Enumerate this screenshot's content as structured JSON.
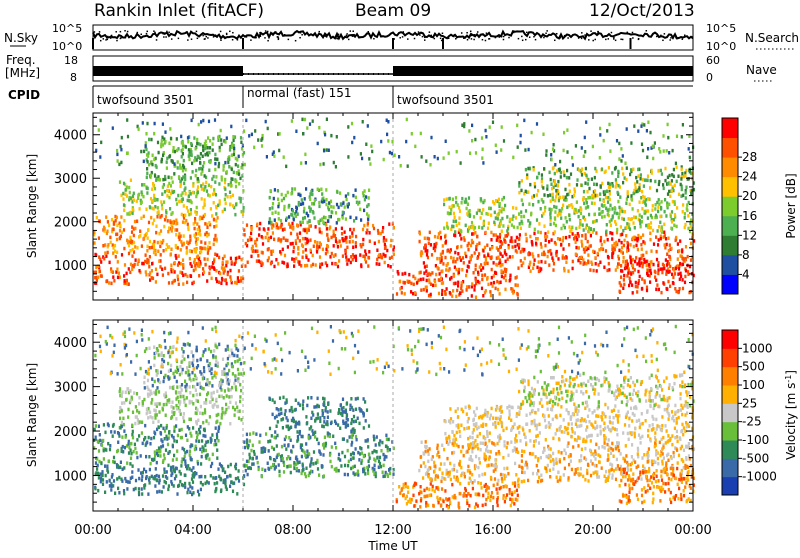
{
  "header": {
    "station": "Rankin Inlet (fitACF)",
    "beam": "Beam 09",
    "date": "12/Oct/2013"
  },
  "noise_panel": {
    "left_label": "N.Sky",
    "right_label": "N.Search",
    "left_ticks": [
      "10^5",
      "10^0"
    ],
    "right_ticks": [
      "10^5",
      "10^0"
    ]
  },
  "freq_panel": {
    "left_label_1": "Freq.",
    "left_label_2": "[MHz]",
    "right_label": "Nave",
    "left_ticks": [
      "18",
      "8"
    ],
    "right_ticks": [
      "60",
      "0"
    ]
  },
  "cpid": {
    "label": "CPID",
    "segments": [
      {
        "label": "twofsound 3501",
        "start_hour": 0,
        "end_hour": 6
      },
      {
        "label": "normal (fast) 151",
        "start_hour": 6,
        "end_hour": 12
      },
      {
        "label": "twofsound 3501",
        "start_hour": 12,
        "end_hour": 24
      }
    ]
  },
  "chart_data": [
    {
      "type": "heatmap",
      "quantity": "Power",
      "ylabel": "Slant Range [km]",
      "xlabel": "Time UT",
      "xlim": [
        0,
        24
      ],
      "ylim": [
        200,
        4500
      ],
      "yticks": [
        "1000",
        "2000",
        "3000",
        "4000"
      ],
      "colorbar": {
        "label": "Power [dB]",
        "ticks": [
          "4",
          "8",
          "12",
          "16",
          "20",
          "24",
          "28"
        ],
        "colors": [
          "#0000ff",
          "#1e4fa0",
          "#2e7d32",
          "#4caf50",
          "#7ccc2e",
          "#ffc000",
          "#ff8c00",
          "#ff5000",
          "#ff0000"
        ]
      }
    },
    {
      "type": "heatmap",
      "quantity": "Velocity",
      "ylabel": "Slant Range [km]",
      "xlabel": "Time UT",
      "xlim": [
        0,
        24
      ],
      "ylim": [
        200,
        4500
      ],
      "yticks": [
        "1000",
        "2000",
        "3000",
        "4000"
      ],
      "xticks": [
        "00:00",
        "04:00",
        "08:00",
        "12:00",
        "16:00",
        "20:00",
        "00:00"
      ],
      "colorbar": {
        "label": "Velocity [m s",
        "label_sup": "-1",
        "label_end": "]",
        "ticks": [
          "1000",
          "500",
          "100",
          "25",
          "-25",
          "-100",
          "-500",
          "-1000"
        ],
        "colors": [
          "#1a3fb0",
          "#3a6aa8",
          "#2e8b57",
          "#6abf3a",
          "#c8c8c8",
          "#ffb000",
          "#ff8000",
          "#ff4000",
          "#ff0000"
        ]
      }
    }
  ],
  "x_axis": {
    "ticks": [
      "00:00",
      "04:00",
      "08:00",
      "12:00",
      "16:00",
      "20:00",
      "00:00"
    ],
    "title": "Time UT"
  }
}
